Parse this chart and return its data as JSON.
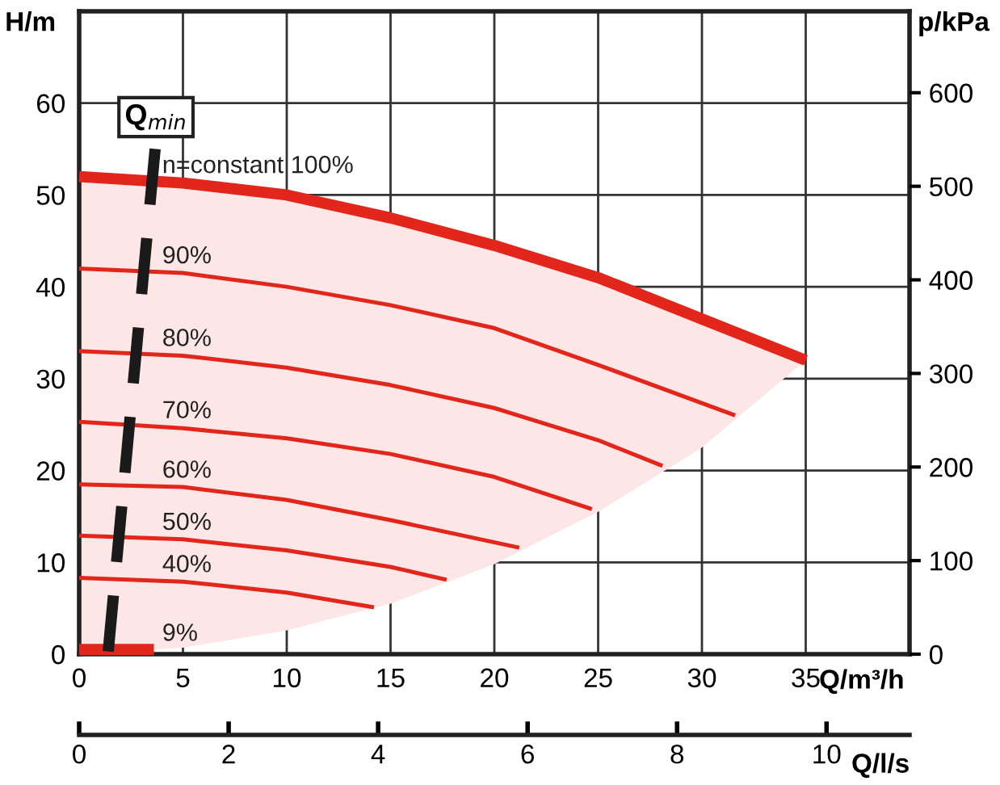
{
  "chart_data": {
    "type": "line",
    "ylabel": "H/m",
    "y2label": "p/kPa",
    "xlabel": "Q/m³/h",
    "x2label": "Q/l/s",
    "xlim": [
      0,
      40
    ],
    "xticks": [
      0,
      5,
      10,
      15,
      20,
      25,
      30,
      35
    ],
    "ylim": [
      0,
      70
    ],
    "yticks": [
      0,
      10,
      20,
      30,
      40,
      50,
      60
    ],
    "y2lim": [
      0,
      687
    ],
    "y2ticks": [
      0,
      100,
      200,
      300,
      400,
      500,
      600
    ],
    "x2lim": [
      0,
      11.11
    ],
    "x2ticks": [
      0,
      2,
      4,
      6,
      8,
      10
    ],
    "grid": true,
    "legend": false,
    "marker": "none",
    "series": [
      {
        "name": "n=constant 100%",
        "color": "#e3261b",
        "x": [
          0,
          5,
          10,
          15,
          20,
          25,
          30,
          35
        ],
        "values": [
          52,
          51.3,
          50,
          47.5,
          44.5,
          41,
          36.5,
          32
        ],
        "lower": [
          0,
          0.7,
          2.6,
          5.5,
          9.8,
          15.5,
          22.5,
          32
        ],
        "upper": [
          52,
          51.3,
          50,
          47.5,
          44.5,
          41,
          36.5,
          32
        ]
      },
      {
        "name": "90%",
        "color": "#e3261b",
        "x": [
          0,
          5,
          10,
          15,
          20,
          25,
          31.6
        ],
        "values": [
          42,
          41.5,
          40,
          38,
          35.5,
          31.5,
          26
        ]
      },
      {
        "name": "80%",
        "color": "#e3261b",
        "x": [
          0,
          5,
          10,
          15,
          20,
          25,
          28.1
        ],
        "values": [
          33,
          32.5,
          31.2,
          29.3,
          26.8,
          23.3,
          20.5
        ]
      },
      {
        "name": "70%",
        "color": "#e3261b",
        "x": [
          0,
          5,
          10,
          15,
          20,
          24.7
        ],
        "values": [
          25.3,
          24.6,
          23.5,
          21.8,
          19.3,
          15.8
        ]
      },
      {
        "name": "60%",
        "color": "#e3261b",
        "x": [
          0,
          5,
          10,
          15,
          21.2
        ],
        "values": [
          18.5,
          18.2,
          16.8,
          14.6,
          11.6
        ]
      },
      {
        "name": "50%",
        "color": "#e3261b",
        "x": [
          0,
          5,
          10,
          15,
          17.7
        ],
        "values": [
          12.9,
          12.5,
          11.3,
          9.5,
          8.1
        ]
      },
      {
        "name": "40%",
        "color": "#e3261b",
        "x": [
          0,
          5,
          10,
          14.2
        ],
        "values": [
          8.3,
          7.9,
          6.7,
          5.1
        ]
      },
      {
        "name": "9%",
        "color": "#e3261b",
        "x": [
          0,
          3.6
        ],
        "values": [
          0.5,
          0.5
        ]
      },
      {
        "color": "#1a1a1a",
        "line_style": "dashed",
        "x": [
          1.4,
          3.7
        ],
        "values": [
          0.3,
          56
        ]
      }
    ],
    "annotations": [
      {
        "text": "Q$_{min}$",
        "x": 3.7,
        "y": 56
      }
    ]
  }
}
